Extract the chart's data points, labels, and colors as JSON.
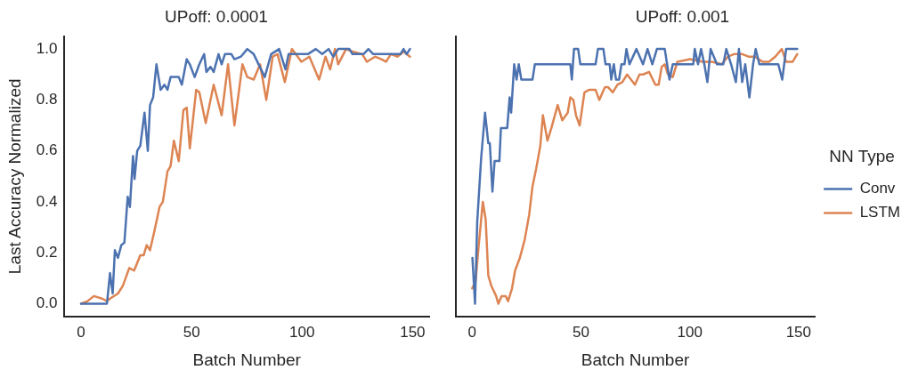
{
  "chart_data": [
    {
      "type": "line",
      "title": "UPoff: 0.0001",
      "xlabel": "Batch Number",
      "ylabel": "Last Accuracy Normalized",
      "xlim": [
        -7.5,
        157.5
      ],
      "ylim": [
        -0.05,
        1.05
      ],
      "xticks": [
        0,
        50,
        100,
        150
      ],
      "yticks": [
        {
          "value": 0,
          "label": "0.0"
        },
        {
          "value": 0.2,
          "label": "0.2"
        },
        {
          "value": 0.4,
          "label": "0.4"
        },
        {
          "value": 0.6,
          "label": "0.6"
        },
        {
          "value": 0.8,
          "label": "0.8"
        },
        {
          "value": 1,
          "label": "1.0"
        }
      ],
      "grid": false,
      "legend": false,
      "marker": "none",
      "line_style": "solid",
      "series": [
        {
          "color": "#4c72b0",
          "x": [
            0,
            11.7,
            13.1,
            14.3,
            15.3,
            16.7,
            18.2,
            19.6,
            21.1,
            22.1,
            23.5,
            24.2,
            25.4,
            26.8,
            28.7,
            30.2,
            31.2,
            32.6,
            34.1,
            36,
            37.7,
            39.1,
            40.5,
            44.2,
            45.6,
            47.8,
            49.2,
            51.4,
            53.5,
            55.7,
            56.7,
            58.6,
            60,
            62.2,
            63.6,
            65.1,
            68,
            69.4,
            72.3,
            75.2,
            78.1,
            83.1,
            86,
            89.6,
            92.5,
            93.9,
            102.6,
            106.2,
            109.1,
            112,
            114.1,
            116.3,
            121.4,
            122.8,
            127.8,
            130,
            132.2,
            144.5,
            145.9,
            147.3,
            148.8
          ],
          "values": [
            0,
            0,
            0.12,
            0.04,
            0.21,
            0.18,
            0.23,
            0.24,
            0.42,
            0.38,
            0.58,
            0.49,
            0.6,
            0.62,
            0.75,
            0.6,
            0.78,
            0.81,
            0.94,
            0.84,
            0.86,
            0.84,
            0.89,
            0.89,
            0.86,
            0.96,
            0.94,
            0.89,
            0.94,
            0.98,
            0.91,
            0.93,
            0.91,
            0.98,
            0.94,
            0.98,
            0.98,
            0.96,
            0.97,
            1.0,
            0.98,
            0.89,
            0.98,
            1.0,
            0.92,
            0.98,
            0.98,
            1.0,
            0.98,
            1.0,
            0.97,
            1.0,
            1.0,
            0.98,
            0.98,
            1.0,
            0.98,
            0.98,
            1.0,
            0.98,
            1.0
          ]
        },
        {
          "color": "#dd8452",
          "x": [
            0,
            2.9,
            5.8,
            9.5,
            11.7,
            13.1,
            16.7,
            18.9,
            21.8,
            24,
            26.8,
            28.3,
            29.7,
            31.2,
            33.3,
            35.5,
            37,
            39.1,
            40.5,
            42,
            44.2,
            46.3,
            47.8,
            49.2,
            52.1,
            53.5,
            56.4,
            60,
            61.5,
            63.6,
            66.5,
            69.4,
            73,
            75.2,
            78.1,
            81,
            83.8,
            86.7,
            88.9,
            92.2,
            95.4,
            99.7,
            103.3,
            107.7,
            110.6,
            112.7,
            114.9,
            116.3,
            119.9,
            122.8,
            127.2,
            129.3,
            133,
            135.9,
            138,
            140.2,
            143.1,
            146,
            148.8
          ],
          "values": [
            0,
            0.01,
            0.03,
            0.02,
            0.01,
            0.02,
            0.04,
            0.07,
            0.14,
            0.13,
            0.19,
            0.19,
            0.23,
            0.21,
            0.29,
            0.38,
            0.4,
            0.52,
            0.54,
            0.64,
            0.56,
            0.76,
            0.77,
            0.61,
            0.84,
            0.83,
            0.71,
            0.86,
            0.81,
            0.74,
            0.94,
            0.7,
            0.94,
            0.89,
            0.88,
            0.94,
            0.8,
            0.97,
            0.98,
            0.87,
            1.0,
            0.95,
            0.97,
            0.88,
            0.97,
            0.92,
            1.0,
            0.94,
            1.0,
            0.99,
            0.98,
            0.95,
            0.97,
            0.96,
            0.95,
            0.98,
            0.97,
            0.99,
            0.97
          ]
        }
      ]
    },
    {
      "type": "line",
      "title": "UPoff: 0.001",
      "xlabel": "Batch Number",
      "xlim": [
        -7.5,
        157.5
      ],
      "ylim": [
        -0.05,
        1.05
      ],
      "xticks": [
        0,
        50,
        100,
        150
      ],
      "yticks": [
        {
          "value": 0,
          "label": null
        },
        {
          "value": 0.2,
          "label": null
        },
        {
          "value": 0.4,
          "label": null
        },
        {
          "value": 0.6,
          "label": null
        },
        {
          "value": 0.8,
          "label": null
        },
        {
          "value": 1,
          "label": null
        }
      ],
      "tick_labels": "x",
      "grid": false,
      "legend": "right",
      "legend_title": "NN Type",
      "marker": "none",
      "line_style": "solid",
      "series": [
        {
          "name": "Conv",
          "color": "#4c72b0",
          "x": [
            0.1,
            1.3,
            2.3,
            4.1,
            5.9,
            7.4,
            8.1,
            9.3,
            10.3,
            12.5,
            13.2,
            16.1,
            17.2,
            17.9,
            19.3,
            20.4,
            21.4,
            22.6,
            27.7,
            28.8,
            45.1,
            45.8,
            46.8,
            48.7,
            49.7,
            56.7,
            57.8,
            60.3,
            61.3,
            63.2,
            63.9,
            65.1,
            66.1,
            67.5,
            68.6,
            70,
            70.9,
            72.3,
            75.5,
            78.5,
            80.6,
            82.8,
            84.9,
            88.5,
            90.7,
            92.2,
            101.6,
            102.3,
            103.8,
            105.2,
            106.7,
            108.1,
            109.6,
            112.5,
            115.4,
            116.8,
            119,
            121.2,
            122.6,
            124.1,
            125.5,
            127.4,
            129.1,
            130.3,
            132,
            140.7,
            142.5,
            144.3,
            149.4
          ],
          "values": [
            0.18,
            0.0,
            0.32,
            0.57,
            0.75,
            0.63,
            0.63,
            0.44,
            0.56,
            0.56,
            0.69,
            0.69,
            0.81,
            0.75,
            0.94,
            0.88,
            0.94,
            0.88,
            0.88,
            0.94,
            0.94,
            0.88,
            1.0,
            1.0,
            0.94,
            0.94,
            1.0,
            1.0,
            0.94,
            0.94,
            0.88,
            0.94,
            0.88,
            0.88,
            0.94,
            0.94,
            1.0,
            0.94,
            1.0,
            0.94,
            1.0,
            0.94,
            1.0,
            1.0,
            0.88,
            0.94,
            0.94,
            1.0,
            0.94,
            1.0,
            0.94,
            0.87,
            1.0,
            0.94,
            0.94,
            1.0,
            0.94,
            0.87,
            1.0,
            0.87,
            0.94,
            0.81,
            0.94,
            1.0,
            0.94,
            0.94,
            0.88,
            1.0,
            1.0
          ]
        },
        {
          "name": "LSTM",
          "color": "#dd8452",
          "x": [
            0,
            1.6,
            3,
            4.9,
            6.2,
            7.4,
            8.8,
            11,
            12,
            13.5,
            15.4,
            16.5,
            18.3,
            19.7,
            21.9,
            24.1,
            26.2,
            27.7,
            29.4,
            31.3,
            32.5,
            34.6,
            36.4,
            39.3,
            41.4,
            43.9,
            45.1,
            46.5,
            47.7,
            49.4,
            51.6,
            53.8,
            56.7,
            58.4,
            61,
            62.5,
            64.6,
            66.8,
            69,
            71.2,
            74.8,
            76.9,
            78.5,
            81.3,
            84.2,
            85.7,
            87.1,
            88.5,
            90,
            92.2,
            94.3,
            100.1,
            106,
            110.3,
            114.7,
            117.5,
            120.4,
            124.1,
            127,
            129.9,
            133.5,
            136.4,
            139.3,
            142.3,
            144.3,
            147.3,
            149.4
          ],
          "values": [
            0.06,
            0.09,
            0.23,
            0.4,
            0.33,
            0.11,
            0.07,
            0.03,
            0.0,
            0.03,
            0.03,
            0.01,
            0.06,
            0.13,
            0.18,
            0.25,
            0.35,
            0.46,
            0.53,
            0.62,
            0.74,
            0.64,
            0.69,
            0.78,
            0.72,
            0.75,
            0.81,
            0.8,
            0.74,
            0.7,
            0.83,
            0.84,
            0.84,
            0.8,
            0.85,
            0.85,
            0.83,
            0.86,
            0.87,
            0.9,
            0.86,
            0.9,
            0.9,
            0.91,
            0.86,
            0.86,
            0.93,
            0.94,
            0.9,
            0.89,
            0.95,
            0.96,
            0.95,
            0.95,
            0.94,
            0.97,
            0.98,
            0.98,
            0.97,
            0.97,
            0.95,
            0.95,
            0.97,
            1.0,
            0.95,
            0.95,
            0.98
          ]
        }
      ]
    }
  ]
}
